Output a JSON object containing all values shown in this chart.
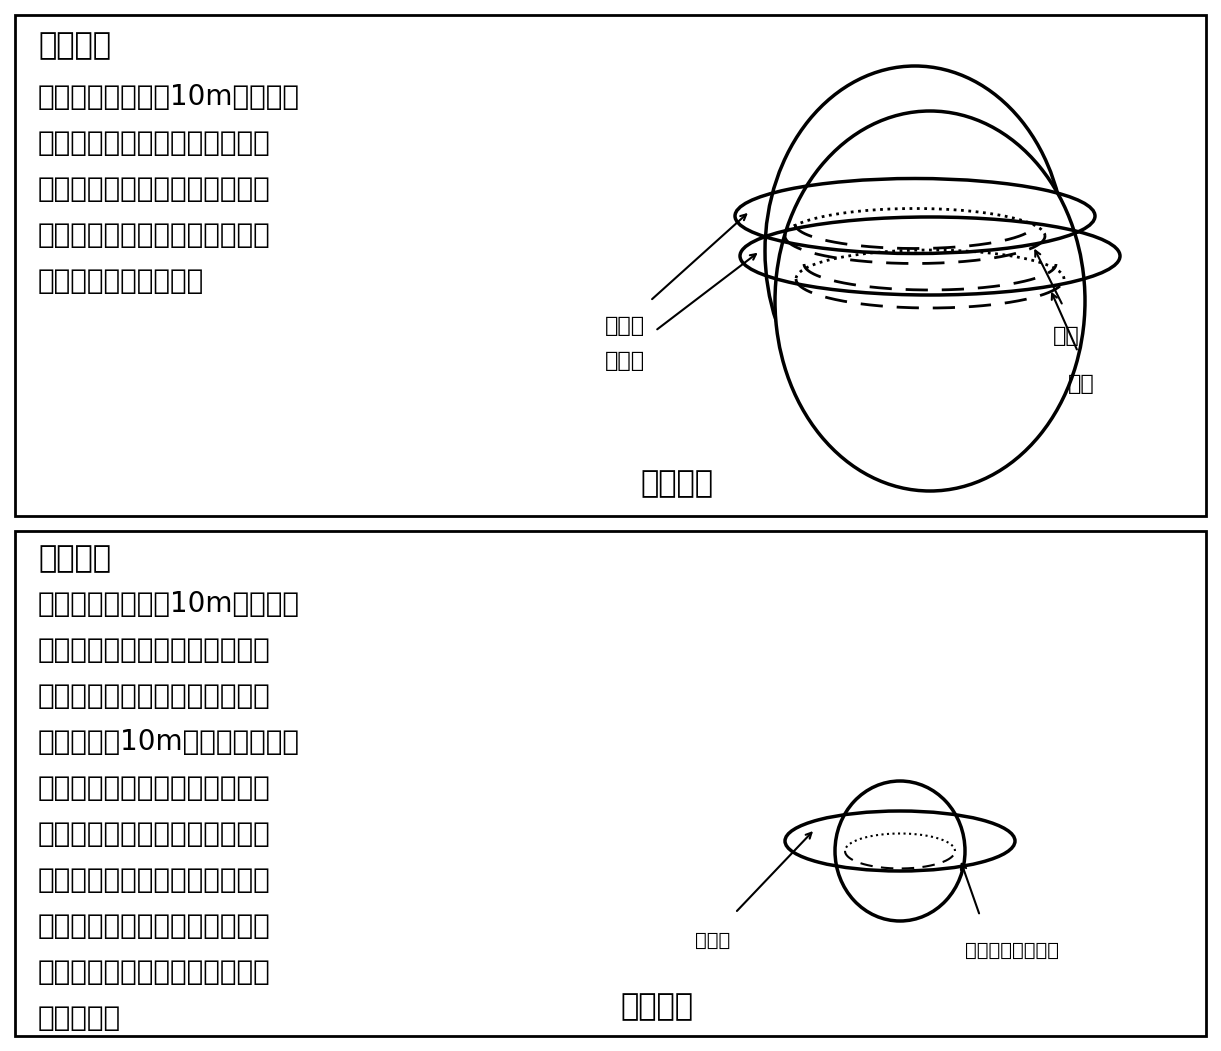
{
  "bg_color": "#ffffff",
  "border_color": "#000000",
  "text_color": "#000000",
  "panel1_title": "＜問題＞",
  "panel1_line1": "　地球の赤道上空10mの高さに",
  "panel1_line2": "ロープを円形に巻くことができ",
  "panel1_line3": "たとします。赤道の長さより、",
  "panel1_line4": "ロープの長さはどれくらい長い",
  "panel1_line5": "ですか、求めなさい。",
  "panel1_caption": "【図１】",
  "panel2_title": "＜問題＞",
  "panel2_line1": "　地球の赤道上空10mの高さに",
  "panel2_line2": "ロープを円形に巻くことができ",
  "panel2_line3": "たとします。また、ピンポン玉",
  "panel2_line4": "の赤道上空10mの高さにロープ",
  "panel2_line5": "を円形に巻くことができたとし",
  "panel2_line6": "ます。地球のロープの長さと赤",
  "panel2_line7": "道の長さの差と、ピンポン玉の",
  "panel2_line8": "ロープの長さとピンポン玉の赤",
  "panel2_line9": "道の長さの差はどちらが長いで",
  "panel2_line10": "しょうか。",
  "panel2_caption": "【図２】",
  "label_rope1": "ロープ",
  "label_equator1": "赤道",
  "label_rope2": "ロープ",
  "label_equator2": "赤道",
  "label_rope3": "ロープ",
  "label_pingpong": "ピンポン玉の赤道",
  "font_size_text": 20,
  "font_size_caption": 22,
  "font_size_label": 16
}
